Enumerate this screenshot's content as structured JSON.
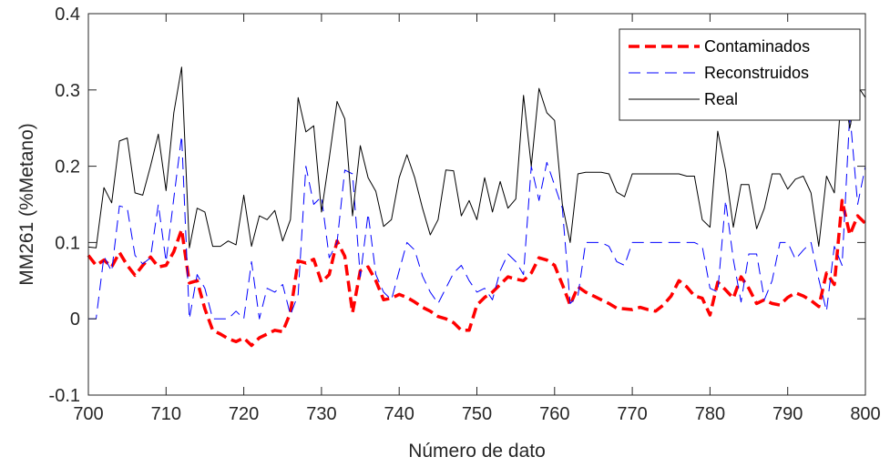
{
  "chart_data": {
    "type": "line",
    "xlabel": "Número de dato",
    "ylabel": "MM261 (%Metano)",
    "xlim": [
      700,
      800
    ],
    "ylim": [
      -0.1,
      0.4
    ],
    "xticks": [
      700,
      710,
      720,
      730,
      740,
      750,
      760,
      770,
      780,
      790,
      800
    ],
    "yticks": [
      -0.1,
      0,
      0.1,
      0.2,
      0.3,
      0.4
    ],
    "ytick_labels": [
      "-0.1",
      "0",
      "0.1",
      "0.2",
      "0.3",
      "0.4"
    ],
    "grid": false,
    "legend_position": "top-right",
    "x": [
      700,
      701,
      702,
      703,
      704,
      705,
      706,
      707,
      708,
      709,
      710,
      711,
      712,
      713,
      714,
      715,
      716,
      717,
      718,
      719,
      720,
      721,
      722,
      723,
      724,
      725,
      726,
      727,
      728,
      729,
      730,
      731,
      732,
      733,
      734,
      735,
      736,
      737,
      738,
      739,
      740,
      741,
      742,
      743,
      744,
      745,
      746,
      747,
      748,
      749,
      750,
      751,
      752,
      753,
      754,
      755,
      756,
      757,
      758,
      759,
      760,
      761,
      762,
      763,
      764,
      765,
      766,
      767,
      768,
      769,
      770,
      771,
      772,
      773,
      774,
      775,
      776,
      777,
      778,
      779,
      780,
      781,
      782,
      783,
      784,
      785,
      786,
      787,
      788,
      789,
      790,
      791,
      792,
      793,
      794,
      795,
      796,
      797,
      798,
      799,
      800
    ],
    "series": [
      {
        "name": "Contaminados",
        "color": "#ff0000",
        "style": "thick-dashed",
        "values": [
          0.083,
          0.07,
          0.077,
          0.068,
          0.087,
          0.07,
          0.057,
          0.07,
          0.081,
          0.068,
          0.07,
          0.088,
          0.117,
          0.047,
          0.05,
          0.013,
          -0.015,
          -0.02,
          -0.026,
          -0.03,
          -0.025,
          -0.035,
          -0.025,
          -0.02,
          -0.015,
          -0.017,
          0.008,
          0.076,
          0.073,
          0.078,
          0.048,
          0.058,
          0.102,
          0.082,
          0.008,
          0.063,
          0.068,
          0.05,
          0.025,
          0.027,
          0.032,
          0.028,
          0.022,
          0.015,
          0.01,
          0.003,
          0.0,
          -0.005,
          -0.015,
          -0.015,
          0.018,
          0.028,
          0.035,
          0.045,
          0.055,
          0.052,
          0.05,
          0.06,
          0.08,
          0.077,
          0.07,
          0.045,
          0.018,
          0.042,
          0.035,
          0.03,
          0.025,
          0.02,
          0.014,
          0.013,
          0.012,
          0.015,
          0.012,
          0.01,
          0.018,
          0.03,
          0.05,
          0.042,
          0.03,
          0.027,
          0.005,
          0.048,
          0.038,
          0.027,
          0.055,
          0.04,
          0.02,
          0.025,
          0.02,
          0.018,
          0.028,
          0.034,
          0.03,
          0.024,
          0.016,
          0.06,
          0.045,
          0.155,
          0.11,
          0.135,
          0.125
        ]
      },
      {
        "name": "Reconstruidos",
        "color": "#0000ff",
        "style": "dashed",
        "values": [
          0.0,
          0.0,
          0.082,
          0.062,
          0.148,
          0.145,
          0.083,
          0.072,
          0.08,
          0.15,
          0.075,
          0.158,
          0.24,
          0.0,
          0.058,
          0.04,
          0.0,
          0.0,
          0.0,
          0.01,
          0.0,
          0.075,
          0.0,
          0.04,
          0.035,
          0.045,
          0.005,
          0.032,
          0.2,
          0.15,
          0.16,
          0.08,
          0.1,
          0.195,
          0.19,
          0.055,
          0.138,
          0.058,
          0.035,
          0.025,
          0.063,
          0.1,
          0.09,
          0.056,
          0.035,
          0.02,
          0.04,
          0.06,
          0.07,
          0.05,
          0.035,
          0.04,
          0.025,
          0.063,
          0.085,
          0.075,
          0.058,
          0.2,
          0.155,
          0.205,
          0.175,
          0.145,
          0.02,
          0.03,
          0.1,
          0.1,
          0.1,
          0.095,
          0.075,
          0.07,
          0.1,
          0.1,
          0.1,
          0.1,
          0.1,
          0.1,
          0.1,
          0.1,
          0.1,
          0.095,
          0.04,
          0.035,
          0.155,
          0.078,
          0.022,
          0.085,
          0.085,
          0.025,
          0.05,
          0.1,
          0.1,
          0.078,
          0.09,
          0.1,
          0.052,
          0.01,
          0.095,
          0.07,
          0.27,
          0.15,
          0.2
        ]
      },
      {
        "name": "Real",
        "color": "#000000",
        "style": "solid",
        "values": [
          0.094,
          0.093,
          0.172,
          0.152,
          0.233,
          0.237,
          0.165,
          0.162,
          0.2,
          0.242,
          0.168,
          0.27,
          0.33,
          0.093,
          0.145,
          0.14,
          0.095,
          0.095,
          0.102,
          0.097,
          0.162,
          0.095,
          0.135,
          0.13,
          0.142,
          0.102,
          0.13,
          0.29,
          0.245,
          0.253,
          0.14,
          0.21,
          0.285,
          0.262,
          0.135,
          0.227,
          0.185,
          0.167,
          0.121,
          0.13,
          0.185,
          0.215,
          0.185,
          0.145,
          0.11,
          0.13,
          0.195,
          0.194,
          0.135,
          0.155,
          0.13,
          0.185,
          0.14,
          0.18,
          0.145,
          0.157,
          0.293,
          0.2,
          0.302,
          0.27,
          0.26,
          0.15,
          0.1,
          0.19,
          0.192,
          0.192,
          0.192,
          0.19,
          0.166,
          0.16,
          0.19,
          0.19,
          0.19,
          0.19,
          0.19,
          0.19,
          0.19,
          0.187,
          0.187,
          0.13,
          0.12,
          0.246,
          0.195,
          0.12,
          0.176,
          0.176,
          0.118,
          0.145,
          0.19,
          0.19,
          0.17,
          0.183,
          0.187,
          0.165,
          0.095,
          0.187,
          0.165,
          0.31,
          0.25,
          0.305,
          0.29
        ]
      }
    ]
  }
}
